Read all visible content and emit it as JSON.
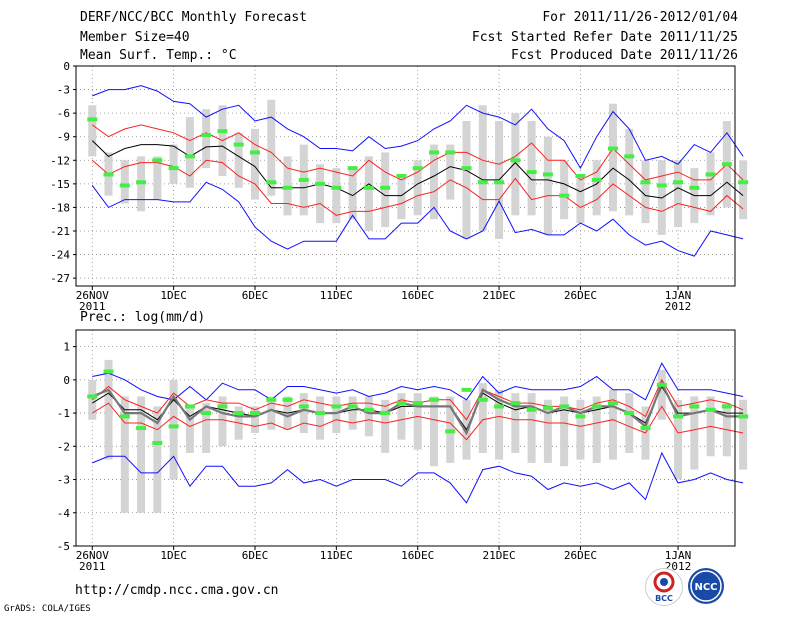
{
  "header": {
    "title": "DERF/NCC/BCC Monthly Forecast",
    "member_size": "Member Size=40",
    "variable": "Mean Surf. Temp.: °C",
    "period": "For 2011/11/26-2012/01/04",
    "started": "Fcst Started Refer Date 2011/11/25",
    "produced": "Fcst Produced Date 2011/11/26"
  },
  "footer": {
    "url": "http://cmdp.ncc.cma.gov.cn",
    "credit": "GrADS: COLA/IGES",
    "logo_left_text": "BCC",
    "logo_right_text": "NCC"
  },
  "colors": {
    "envelope": "#1010ff",
    "spread": "#ff2020",
    "mean": "#000000",
    "bars": "#d4d4d4",
    "marker": "#44ee44",
    "grid": "#888888"
  },
  "chart_data": [
    {
      "type": "line",
      "title": "Mean Surf. Temp.: °C",
      "x_labels": [
        {
          "day": 0,
          "label": "26NOV",
          "sub": "2011"
        },
        {
          "day": 5,
          "label": "1DEC"
        },
        {
          "day": 10,
          "label": "6DEC"
        },
        {
          "day": 15,
          "label": "11DEC"
        },
        {
          "day": 20,
          "label": "16DEC"
        },
        {
          "day": 25,
          "label": "21DEC"
        },
        {
          "day": 30,
          "label": "26DEC"
        },
        {
          "day": 36,
          "label": "1JAN",
          "sub": "2012"
        }
      ],
      "xlim": [
        -1,
        39.5
      ],
      "ylim": [
        -28,
        0
      ],
      "yticks": [
        0,
        -3,
        -6,
        -9,
        -12,
        -15,
        -18,
        -21,
        -24,
        -27
      ],
      "ytick_labels": [
        "0",
        "-3",
        "-6",
        "-9",
        "-12",
        "-15",
        "-18",
        "-21",
        "-24",
        "-27"
      ],
      "series": [
        {
          "name": "max",
          "color": "#1010ff",
          "values": [
            -3.8,
            -3,
            -3,
            -2.5,
            -3.2,
            -4.5,
            -4.8,
            -6.5,
            -5.5,
            -5,
            -7,
            -6.5,
            -8,
            -9,
            -10.5,
            -10.5,
            -10.8,
            -9,
            -10.5,
            -10.2,
            -9.5,
            -8,
            -7,
            -5,
            -6,
            -6.5,
            -7.5,
            -5.5,
            -8,
            -9.5,
            -13,
            -9,
            -5.8,
            -8,
            -12,
            -11.5,
            -12.5,
            -10,
            -11,
            -8.5,
            -11.5
          ]
        },
        {
          "name": "upper",
          "color": "#ff2020",
          "values": [
            -7.5,
            -9,
            -8,
            -7.5,
            -8,
            -8.5,
            -9.5,
            -8.5,
            -9.5,
            -8.5,
            -10,
            -11,
            -13,
            -13.5,
            -13,
            -13.5,
            -14,
            -12,
            -13.5,
            -14.5,
            -13.5,
            -12,
            -11,
            -11,
            -12,
            -12.5,
            -11.5,
            -9.8,
            -12,
            -12,
            -14.5,
            -13.5,
            -10.5,
            -12.5,
            -14.5,
            -14,
            -13.5,
            -14.5,
            -14.5,
            -12.5,
            -14.5
          ]
        },
        {
          "name": "mean",
          "color": "#000000",
          "values": [
            -9.5,
            -11.5,
            -10.5,
            -10,
            -10,
            -10.2,
            -11.5,
            -10.3,
            -10.2,
            -11.5,
            -12.8,
            -15.5,
            -15.5,
            -15.5,
            -15,
            -15.5,
            -16.5,
            -15,
            -16.5,
            -16.5,
            -15,
            -14,
            -12.8,
            -13.3,
            -14.5,
            -14.5,
            -12.3,
            -14.5,
            -14.5,
            -15,
            -16,
            -15,
            -13,
            -14.5,
            -16.5,
            -16.8,
            -15.5,
            -16.5,
            -16.5,
            -14.8,
            -16.5
          ]
        },
        {
          "name": "lower",
          "color": "#ff2020",
          "values": [
            -12,
            -13.8,
            -12.8,
            -12.3,
            -12.3,
            -12.8,
            -14,
            -12,
            -12.3,
            -14,
            -15,
            -17.5,
            -17.5,
            -18,
            -17.5,
            -19,
            -18.5,
            -18.5,
            -18,
            -17.5,
            -16.5,
            -16,
            -14.5,
            -15.5,
            -17,
            -17,
            -14.3,
            -17,
            -16.5,
            -16.5,
            -18,
            -17,
            -15,
            -16.5,
            -18,
            -18.5,
            -17.5,
            -18,
            -18.5,
            -16.5,
            -18.2
          ]
        },
        {
          "name": "min",
          "color": "#1010ff",
          "values": [
            -15.2,
            -18,
            -17,
            -17,
            -17,
            -17.3,
            -17.3,
            -14.8,
            -15.7,
            -17.3,
            -20.5,
            -22.3,
            -23.3,
            -22.3,
            -22.3,
            -22.3,
            -19,
            -22,
            -22,
            -20,
            -20,
            -18,
            -21,
            -22,
            -21,
            -17.2,
            -21.2,
            -20.8,
            -21.5,
            -21.5,
            -20,
            -21,
            -19.5,
            -21.5,
            -22.8,
            -22.3,
            -23.5,
            -24.2,
            -21,
            -21.5,
            -22
          ]
        }
      ],
      "spread_bars": [
        [
          -5,
          -11.5
        ],
        [
          -11,
          -16.5
        ],
        [
          -12,
          -17.5
        ],
        [
          -11.5,
          -18.5
        ],
        [
          -11.5,
          -17
        ],
        [
          -10,
          -15
        ],
        [
          -6.5,
          -15.5
        ],
        [
          -5.5,
          -13
        ],
        [
          -5,
          -14
        ],
        [
          -8.5,
          -15.5
        ],
        [
          -8,
          -17
        ],
        [
          -4.3,
          -16.5
        ],
        [
          -11.5,
          -19
        ],
        [
          -10,
          -19
        ],
        [
          -12.5,
          -20
        ],
        [
          -13,
          -20
        ],
        [
          -13,
          -19.5
        ],
        [
          -11.5,
          -21
        ],
        [
          -11,
          -20.5
        ],
        [
          -14,
          -19.5
        ],
        [
          -12,
          -19
        ],
        [
          -10,
          -19.5
        ],
        [
          -10,
          -17
        ],
        [
          -7,
          -22
        ],
        [
          -5,
          -21
        ],
        [
          -7,
          -22
        ],
        [
          -6,
          -19
        ],
        [
          -7,
          -19
        ],
        [
          -9,
          -21.5
        ],
        [
          -12,
          -19.5
        ],
        [
          -14,
          -20
        ],
        [
          -12,
          -19
        ],
        [
          -4.8,
          -18.5
        ],
        [
          -8,
          -19
        ],
        [
          -12,
          -20
        ],
        [
          -12,
          -21.5
        ],
        [
          -12,
          -20.5
        ],
        [
          -13,
          -20
        ],
        [
          -11,
          -19
        ],
        [
          -7,
          -18
        ],
        [
          -12,
          -19.5
        ]
      ],
      "markers": [
        -6.8,
        -13.8,
        -15.2,
        -14.8,
        -12,
        -13,
        -11.5,
        -8.8,
        -8.3,
        -10,
        -11,
        -14.8,
        -15.5,
        -14.5,
        -15,
        -15.5,
        -13,
        -15.5,
        -15.5,
        -14,
        -13,
        -11,
        -11,
        -13,
        -14.8,
        -14.8,
        -12,
        -13.5,
        -13.8,
        -16.5,
        -14,
        -14.5,
        -10.5,
        -11.5,
        -14.8,
        -15.2,
        -14.8,
        -15.5,
        -13.8,
        -12.5,
        -14.8
      ],
      "last_day": 40
    },
    {
      "type": "line",
      "title": "Prec.: log(mm/d)",
      "x_labels": [
        {
          "day": 0,
          "label": "26NOV",
          "sub": "2011"
        },
        {
          "day": 5,
          "label": "1DEC"
        },
        {
          "day": 10,
          "label": "6DEC"
        },
        {
          "day": 15,
          "label": "11DEC"
        },
        {
          "day": 20,
          "label": "16DEC"
        },
        {
          "day": 25,
          "label": "21DEC"
        },
        {
          "day": 30,
          "label": "26DEC"
        },
        {
          "day": 36,
          "label": "1JAN",
          "sub": "2012"
        }
      ],
      "xlim": [
        -1,
        39.5
      ],
      "ylim": [
        -5,
        1.5
      ],
      "yticks": [
        1,
        0,
        -1,
        -2,
        -3,
        -4,
        -5
      ],
      "ytick_labels": [
        "1",
        "0",
        "-1",
        "-2",
        "-3",
        "-4",
        "-5"
      ],
      "series": [
        {
          "name": "max",
          "color": "#1010ff",
          "values": [
            0.1,
            0.2,
            0,
            -0.3,
            -0.5,
            -0.6,
            -0.2,
            -0.6,
            -0.1,
            -0.3,
            -0.3,
            -0.6,
            -0.2,
            -0.2,
            -0.3,
            -0.4,
            -0.3,
            -0.5,
            -0.4,
            -0.2,
            -0.3,
            -0.2,
            -0.3,
            -0.6,
            0.1,
            -0.4,
            -0.2,
            -0.3,
            -0.3,
            -0.3,
            -0.2,
            0.1,
            -0.3,
            -0.3,
            -0.6,
            0.5,
            -0.3,
            -0.3,
            -0.3,
            -0.4,
            -0.5
          ]
        },
        {
          "name": "upper",
          "color": "#ff2020",
          "values": [
            -0.6,
            -0.2,
            -0.6,
            -0.8,
            -1,
            -0.4,
            -0.8,
            -0.6,
            -0.7,
            -0.7,
            -0.9,
            -0.7,
            -0.8,
            -0.6,
            -0.7,
            -0.8,
            -0.7,
            -0.7,
            -0.8,
            -0.6,
            -0.7,
            -0.6,
            -0.6,
            -1.2,
            -0.3,
            -0.5,
            -0.7,
            -0.7,
            -0.8,
            -0.8,
            -0.9,
            -0.7,
            -0.6,
            -0.8,
            -1.1,
            0,
            -0.8,
            -0.7,
            -0.6,
            -0.7,
            -0.9
          ]
        },
        {
          "name": "mean",
          "color": "#000000",
          "values": [
            -0.7,
            -0.4,
            -0.9,
            -0.9,
            -1.2,
            -0.6,
            -1.1,
            -0.8,
            -0.9,
            -1,
            -1.1,
            -0.9,
            -1,
            -0.9,
            -1,
            -1,
            -0.9,
            -0.9,
            -1,
            -0.8,
            -0.8,
            -0.8,
            -0.8,
            -1.5,
            -0.4,
            -0.7,
            -0.9,
            -0.8,
            -1,
            -0.9,
            -1,
            -0.9,
            -0.8,
            -1,
            -1.3,
            -0.2,
            -1,
            -1,
            -0.9,
            -1,
            -1
          ]
        },
        {
          "name": "lower",
          "color": "#ff2020",
          "values": [
            -1,
            -0.7,
            -1.3,
            -1.3,
            -1.5,
            -1.1,
            -1.4,
            -1.2,
            -1.2,
            -1.3,
            -1.4,
            -1.3,
            -1.5,
            -1.3,
            -1.4,
            -1.2,
            -1.3,
            -1.2,
            -1.3,
            -1.2,
            -1.1,
            -1.2,
            -1.3,
            -1.8,
            -1.2,
            -1.1,
            -1.2,
            -1.2,
            -1.3,
            -1.3,
            -1.4,
            -1.3,
            -1.2,
            -1.4,
            -1.6,
            -0.8,
            -1.6,
            -1.5,
            -1.4,
            -1.5,
            -1.6
          ]
        },
        {
          "name": "min",
          "color": "#1010ff",
          "values": [
            -2.5,
            -2.3,
            -2.3,
            -2.8,
            -2.8,
            -2.3,
            -3.2,
            -2.6,
            -2.6,
            -3.2,
            -3.2,
            -3.1,
            -2.7,
            -3.1,
            -3,
            -3.2,
            -3,
            -3,
            -3,
            -3.2,
            -2.8,
            -2.8,
            -3.1,
            -3.7,
            -2.7,
            -2.6,
            -2.8,
            -2.9,
            -3.3,
            -3.1,
            -3.2,
            -3.1,
            -3.3,
            -3.1,
            -3.6,
            -2.2,
            -3.1,
            -3,
            -2.8,
            -3,
            -3.1
          ]
        },
        {
          "name": "member",
          "color": "#777777",
          "values": [
            -0.5,
            -0.3,
            -1,
            -1,
            -1.3,
            -0.5,
            -1.2,
            -0.8,
            -1,
            -1.1,
            -1.1,
            -0.9,
            -1.1,
            -0.9,
            -1,
            -1,
            -0.8,
            -1,
            -1,
            -0.7,
            -0.8,
            -0.8,
            -0.8,
            -1.6,
            -0.3,
            -0.6,
            -0.8,
            -0.8,
            -1,
            -0.8,
            -1,
            -0.8,
            -0.8,
            -1,
            -1.4,
            -0.1,
            -1.1,
            -1,
            -0.9,
            -1.1,
            -1.1
          ]
        }
      ],
      "spread_bars": [
        [
          0,
          -1.2
        ],
        [
          0.6,
          -2.4
        ],
        [
          -0.5,
          -4
        ],
        [
          -0.5,
          -4
        ],
        [
          -0.8,
          -4
        ],
        [
          0,
          -3
        ],
        [
          -0.8,
          -2.2
        ],
        [
          -0.7,
          -2.2
        ],
        [
          -0.5,
          -2
        ],
        [
          -0.8,
          -1.8
        ],
        [
          -0.8,
          -1.6
        ],
        [
          -0.5,
          -1.5
        ],
        [
          -0.5,
          -1.5
        ],
        [
          -0.4,
          -1.6
        ],
        [
          -0.5,
          -1.8
        ],
        [
          -0.5,
          -1.6
        ],
        [
          -0.5,
          -1.5
        ],
        [
          -0.5,
          -1.7
        ],
        [
          -0.6,
          -2.2
        ],
        [
          -0.4,
          -1.8
        ],
        [
          -0.4,
          -2.1
        ],
        [
          -0.5,
          -2.6
        ],
        [
          -0.5,
          -2.5
        ],
        [
          -0.6,
          -2.4
        ],
        [
          -0.1,
          -2.2
        ],
        [
          -0.3,
          -2.4
        ],
        [
          -0.4,
          -2.2
        ],
        [
          -0.4,
          -2.5
        ],
        [
          -0.6,
          -2.5
        ],
        [
          -0.5,
          -2.6
        ],
        [
          -0.6,
          -2.4
        ],
        [
          -0.5,
          -2.5
        ],
        [
          -0.3,
          -2.4
        ],
        [
          -0.4,
          -2.2
        ],
        [
          -0.8,
          -2.4
        ],
        [
          0.3,
          -1.2
        ],
        [
          -0.6,
          -3
        ],
        [
          -0.5,
          -2.7
        ],
        [
          -0.5,
          -2.3
        ],
        [
          -0.7,
          -2.3
        ],
        [
          -0.6,
          -2.7
        ]
      ],
      "markers": [
        -0.5,
        0.25,
        -1.1,
        -1.45,
        -1.9,
        -1.4,
        -0.8,
        -1,
        -0.8,
        -1,
        -1,
        -0.6,
        -0.6,
        -0.8,
        -1,
        -0.8,
        -0.8,
        -0.9,
        -1,
        -0.7,
        -0.7,
        -0.6,
        -1.55,
        -0.3,
        -0.6,
        -0.8,
        -0.7,
        -0.9,
        -0.85,
        -0.8,
        -1.1,
        -0.8,
        -0.7,
        -1,
        -1.45,
        -0.15,
        -1.1,
        -0.8,
        -0.9,
        -0.8,
        -1.1
      ],
      "last_day": 40
    }
  ]
}
